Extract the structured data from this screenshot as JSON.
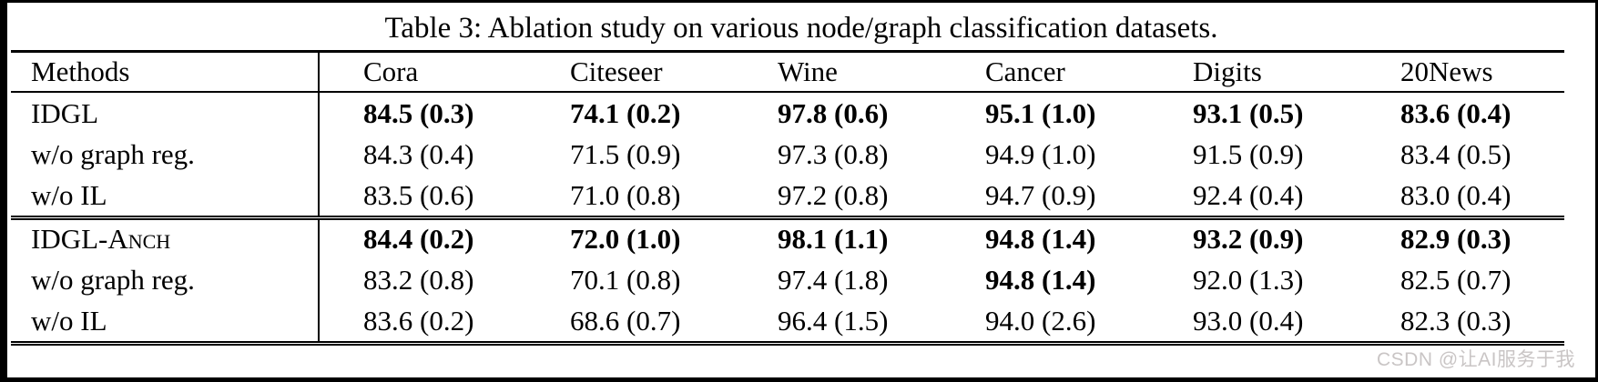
{
  "table": {
    "title": "Table 3: Ablation study on various node/graph classification datasets.",
    "columns": [
      "Methods",
      "Cora",
      "Citeseer",
      "Wine",
      "Cancer",
      "Digits",
      "20News"
    ],
    "sections": [
      {
        "rows": [
          {
            "method": "IDGL",
            "cells": [
              "84.5 (0.3)",
              "74.1 (0.2)",
              "97.8 (0.6)",
              "95.1 (1.0)",
              "93.1 (0.5)",
              "83.6 (0.4)"
            ]
          },
          {
            "method": "w/o graph reg.",
            "cells": [
              "84.3 (0.4)",
              "71.5 (0.9)",
              "97.3 (0.8)",
              "94.9 (1.0)",
              "91.5 (0.9)",
              "83.4 (0.5)"
            ]
          },
          {
            "method": "w/o IL",
            "cells": [
              "83.5 (0.6)",
              "71.0 (0.8)",
              "97.2 (0.8)",
              "94.7 (0.9)",
              "92.4 (0.4)",
              "83.0 (0.4)"
            ]
          }
        ]
      },
      {
        "rows": [
          {
            "method": "IDGL-Anch",
            "cells": [
              "84.4 (0.2)",
              "72.0 (1.0)",
              "98.1 (1.1)",
              "94.8 (1.4)",
              "93.2 (0.9)",
              "82.9 (0.3)"
            ]
          },
          {
            "method": "w/o graph reg.",
            "cells": [
              "83.2 (0.8)",
              "70.1 (0.8)",
              "97.4 (1.8)",
              "94.8 (1.4)",
              "92.0 (1.3)",
              "82.5 (0.7)"
            ]
          },
          {
            "method": "w/o IL",
            "cells": [
              "83.6 (0.2)",
              "68.6 (0.7)",
              "96.4 (1.5)",
              "94.0 (2.6)",
              "93.0 (0.4)",
              "82.3 (0.3)"
            ]
          }
        ]
      }
    ]
  },
  "chart_data": {
    "type": "table",
    "title": "Table 3: Ablation study on various node/graph classification datasets.",
    "columns": [
      "Methods",
      "Cora",
      "Citeseer",
      "Wine",
      "Cancer",
      "Digits",
      "20News"
    ],
    "rows": [
      [
        "IDGL",
        "84.5 (0.3)",
        "74.1 (0.2)",
        "97.8 (0.6)",
        "95.1 (1.0)",
        "93.1 (0.5)",
        "83.6 (0.4)"
      ],
      [
        "w/o graph reg.",
        "84.3 (0.4)",
        "71.5 (0.9)",
        "97.3 (0.8)",
        "94.9 (1.0)",
        "91.5 (0.9)",
        "83.4 (0.5)"
      ],
      [
        "w/o IL",
        "83.5 (0.6)",
        "71.0 (0.8)",
        "97.2 (0.8)",
        "94.7 (0.9)",
        "92.4 (0.4)",
        "83.0 (0.4)"
      ],
      [
        "IDGL-Anch",
        "84.4 (0.2)",
        "72.0 (1.0)",
        "98.1 (1.1)",
        "94.8 (1.4)",
        "93.2 (0.9)",
        "82.9 (0.3)"
      ],
      [
        "w/o graph reg.",
        "83.2 (0.8)",
        "70.1 (0.8)",
        "97.4 (1.8)",
        "94.8 (1.4)",
        "92.0 (1.3)",
        "82.5 (0.7)"
      ],
      [
        "w/o IL",
        "83.6 (0.2)",
        "68.6 (0.7)",
        "96.4 (1.5)",
        "94.0 (2.6)",
        "93.0 (0.4)",
        "82.3 (0.3)"
      ]
    ],
    "bold_cells_note": "All value cells of rows IDGL and IDGL-Anch are bold; Cancer value 94.8 (1.4) in second w/o graph reg. row is bold."
  },
  "watermark": {
    "text": "CSDN @让AI服务于我",
    "color": "#c9c5c5"
  }
}
